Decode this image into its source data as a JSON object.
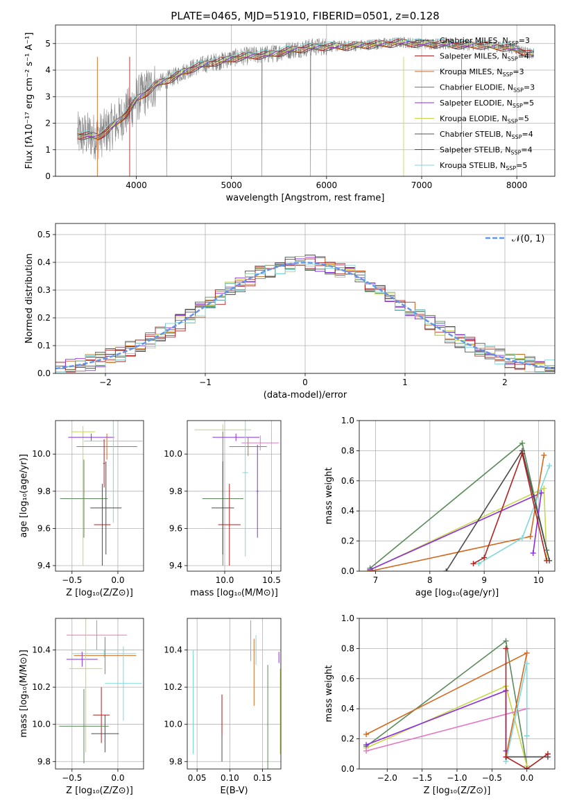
{
  "figure": {
    "title": "PLATE=0465, MJD=51910, FIBERID=0501, z=0.128"
  },
  "colors": {
    "Chabrier MILES": "#4a4a4a",
    "Salpeter MILES": "#b22222",
    "Kroupa MILES": "#d2691e",
    "Chabrier ELODIE": "#5a8a5a",
    "Salpeter ELODIE": "#8b2be2",
    "Kroupa ELODIE": "#c8d84a",
    "Chabrier STELIB": "#505050",
    "Salpeter STELIB": "#b22222",
    "Kroupa STELIB": "#7dd8d8",
    "pink": "#e377c2",
    "data": "#808080",
    "normal": "#6495ed"
  },
  "chart_data": [
    {
      "id": "spectrum",
      "type": "line",
      "xlabel": "wavelength [Angstrom, rest frame]",
      "ylabel": "Flux [fλ10⁻¹⁷ erg cm⁻² s⁻¹ A⁻¹]",
      "xlim": [
        3150,
        8400
      ],
      "ylim": [
        0,
        5.7
      ],
      "xticks": [
        4000,
        5000,
        6000,
        7000,
        8000
      ],
      "yticks": [
        0,
        1,
        2,
        3,
        4,
        5
      ],
      "grid": true,
      "legend_position": "right",
      "continuum": {
        "x": [
          3400,
          3500,
          3600,
          3700,
          3800,
          3900,
          4000,
          4100,
          4200,
          4300,
          4400,
          4500,
          4600,
          4700,
          4800,
          4900,
          5000,
          5200,
          5400,
          5600,
          5800,
          6000,
          6200,
          6400,
          6600,
          6800,
          7000,
          7200,
          7400,
          7600,
          7800,
          8000,
          8150
        ],
        "y": [
          1.55,
          1.55,
          1.5,
          1.75,
          2.05,
          2.4,
          2.9,
          3.15,
          3.45,
          3.6,
          3.75,
          3.95,
          4.1,
          4.2,
          4.3,
          4.35,
          4.45,
          4.55,
          4.6,
          4.75,
          4.85,
          4.9,
          4.9,
          4.95,
          5.0,
          5.05,
          5.0,
          5.0,
          4.95,
          4.95,
          4.9,
          4.8,
          4.6
        ]
      },
      "series": [
        {
          "name": "Chabrier MILES, N_SSP=3",
          "label": "Chabrier MILES, N",
          "sub": "SSP",
          "suffix": "=3",
          "color": "#4a4a4a",
          "style": "solid"
        },
        {
          "name": "Salpeter MILES, N_SSP=4",
          "label": "Salpeter MILES, N",
          "sub": "SSP",
          "suffix": "=4",
          "color": "#b22222",
          "style": "solid"
        },
        {
          "name": "Kroupa MILES, N_SSP=3",
          "label": "Kroupa MILES, N",
          "sub": "SSP",
          "suffix": "=3",
          "color": "#d2691e",
          "style": "solid"
        },
        {
          "name": "Chabrier ELODIE, N_SSP=3",
          "label": "Chabrier ELODIE, N",
          "sub": "SSP",
          "suffix": "=3",
          "color": "#5a8a5a",
          "style": "solid"
        },
        {
          "name": "Salpeter ELODIE, N_SSP=5",
          "label": "Salpeter ELODIE, N",
          "sub": "SSP",
          "suffix": "=5",
          "color": "#8b2be2",
          "style": "solid"
        },
        {
          "name": "Kroupa ELODIE, N_SSP=5",
          "label": "Kroupa ELODIE, N",
          "sub": "SSP",
          "suffix": "=5",
          "color": "#c8d84a",
          "style": "solid"
        },
        {
          "name": "Chabrier STELIB, N_SSP=4",
          "label": "Chabrier STELIB, N",
          "sub": "SSP",
          "suffix": "=4",
          "color": "#505050",
          "style": "solid"
        },
        {
          "name": "Salpeter STELIB, N_SSP=4",
          "label": "Salpeter STELIB, N",
          "sub": "SSP",
          "suffix": "=4",
          "color": "#b22222",
          "style": "solid"
        },
        {
          "name": "Kroupa STELIB, N_SSP=5",
          "label": "Kroupa STELIB, N",
          "sub": "SSP",
          "suffix": "=5",
          "color": "#7dd8d8",
          "style": "solid"
        }
      ]
    },
    {
      "id": "residuals",
      "type": "line",
      "xlabel": "(data-model)/error",
      "ylabel": "Normed distribution",
      "xlim": [
        -2.5,
        2.5
      ],
      "ylim": [
        0,
        0.54
      ],
      "xticks": [
        -2,
        -1,
        0,
        1,
        2
      ],
      "xtick_labels": [
        "−2",
        "−1",
        "0",
        "1",
        "2"
      ],
      "yticks": [
        0,
        0.1,
        0.2,
        0.3,
        0.4,
        0.5
      ],
      "ytick_labels": [
        "0.0",
        "0.1",
        "0.2",
        "0.3",
        "0.4",
        "0.5"
      ],
      "grid": true,
      "legend": "𝒩(0, 1)",
      "legend_position": "top-right",
      "gaussian": {
        "mean": 0,
        "sigma": 1
      }
    },
    {
      "id": "age_vs_Z",
      "type": "scatter",
      "xlabel": "Z [log₁₀(Z/Z⊙)]",
      "ylabel": "age  [log₁₀(age/yr)]",
      "xlim": [
        -0.68,
        0.28
      ],
      "ylim": [
        9.37,
        10.18
      ],
      "xticks": [
        -0.5,
        0.0
      ],
      "xtick_labels": [
        "−0.5",
        "0.0"
      ],
      "yticks": [
        9.4,
        9.6,
        9.8,
        10.0
      ],
      "ytick_labels": [
        "9.4",
        "9.6",
        "9.8",
        "10.0"
      ],
      "grid": true,
      "points": [
        {
          "x": -0.38,
          "y": 10.12,
          "xerr": 0.13,
          "yerr": 0.03,
          "color": "#c8d84a"
        },
        {
          "x": -0.38,
          "y": 9.76,
          "xerr": 0.25,
          "yerr": 0.36,
          "color": "#c8d84a"
        },
        {
          "x": -0.29,
          "y": 10.09,
          "xerr": 0.25,
          "yerr": 0.02,
          "color": "#8b2be2"
        },
        {
          "x": -0.12,
          "y": 10.04,
          "xerr": 0.33,
          "yerr": 0.07,
          "color": "#d2691e"
        },
        {
          "x": -0.05,
          "y": 10.07,
          "xerr": 0.32,
          "yerr": 0.44,
          "color": "#7dd8d8"
        },
        {
          "x": -0.37,
          "y": 9.76,
          "xerr": 0.26,
          "yerr": 0.21,
          "color": "#5a8a5a"
        },
        {
          "x": -0.13,
          "y": 9.71,
          "xerr": 0.17,
          "yerr": 0.25,
          "color": "#4a4a4a"
        },
        {
          "x": -0.17,
          "y": 9.62,
          "xerr": 0.09,
          "yerr": 0.22,
          "color": "#b22222"
        },
        {
          "x": -0.15,
          "y": 9.95,
          "xerr": 0.01,
          "yerr": 0.13,
          "color": "#b22222"
        }
      ]
    },
    {
      "id": "age_vs_mass",
      "type": "scatter",
      "xlabel": "mass [log₁₀(M/M⊙)]",
      "ylabel": "",
      "xlim": [
        9.6,
        10.6
      ],
      "ylim": [
        9.37,
        10.18
      ],
      "xticks": [
        10.0,
        10.5
      ],
      "xtick_labels": [
        "10.0",
        "10.5"
      ],
      "yticks": [
        9.4,
        9.6,
        9.8,
        10.0
      ],
      "ytick_labels": [
        "9.4",
        "9.6",
        "9.8",
        "10.0"
      ],
      "grid": true,
      "points": [
        {
          "x": 9.98,
          "y": 10.13,
          "xerr": 0.3,
          "yerr": 0.03,
          "color": "#c8d84a"
        },
        {
          "x": 10.12,
          "y": 10.09,
          "xerr": 0.25,
          "yerr": 0.02,
          "color": "#8b2be2"
        },
        {
          "x": 10.25,
          "y": 10.04,
          "xerr": 0.2,
          "yerr": 0.05,
          "color": "#d2691e"
        },
        {
          "x": 10.38,
          "y": 10.06,
          "xerr": 0.2,
          "yerr": 0.04,
          "color": "#e377c2"
        },
        {
          "x": 10.22,
          "y": 9.9,
          "xerr": 0.03,
          "yerr": 0.45,
          "color": "#7dd8d8"
        },
        {
          "x": 9.98,
          "y": 9.76,
          "xerr": 0.22,
          "yerr": 0.36,
          "color": "#5a8a5a"
        },
        {
          "x": 9.98,
          "y": 9.71,
          "xerr": 0.12,
          "yerr": 0.25,
          "color": "#4a4a4a"
        },
        {
          "x": 10.05,
          "y": 9.62,
          "xerr": 0.12,
          "yerr": 0.22,
          "color": "#b22222"
        },
        {
          "x": 10.35,
          "y": 9.8,
          "xerr": 0.01,
          "yerr": 0.25,
          "color": "#8b2be2"
        }
      ]
    },
    {
      "id": "weight_vs_age",
      "type": "line",
      "xlabel": "age  [log₁₀(age/yr)]",
      "ylabel": "mass weight",
      "xlim": [
        6.7,
        10.3
      ],
      "ylim": [
        0,
        1.0
      ],
      "xticks": [
        7,
        8,
        9,
        10
      ],
      "yticks": [
        0,
        0.2,
        0.4,
        0.6,
        0.8,
        1.0
      ],
      "ytick_labels": [
        "0.0",
        "0.2",
        "0.4",
        "0.6",
        "0.8",
        "1.0"
      ],
      "grid": true,
      "series": [
        {
          "color": "#5a8a5a",
          "x": [
            6.9,
            9.7,
            10.15
          ],
          "y": [
            0.02,
            0.85,
            0.14
          ]
        },
        {
          "color": "#c8d84a",
          "x": [
            6.85,
            10.1,
            10.15
          ],
          "y": [
            0.0,
            0.55,
            0.08
          ]
        },
        {
          "color": "#8b2be2",
          "x": [
            6.9,
            10.05,
            9.9
          ],
          "y": [
            0.01,
            0.52,
            0.12
          ]
        },
        {
          "color": "#d2691e",
          "x": [
            6.9,
            9.85,
            10.1
          ],
          "y": [
            0.0,
            0.23,
            0.77
          ]
        },
        {
          "color": "#7dd8d8",
          "x": [
            8.9,
            9.7,
            10.2
          ],
          "y": [
            0.05,
            0.22,
            0.7
          ]
        },
        {
          "color": "#4a4a4a",
          "x": [
            8.3,
            9.7,
            10.2
          ],
          "y": [
            0.0,
            0.8,
            0.07
          ]
        },
        {
          "color": "#b22222",
          "x": [
            8.8,
            9.0,
            9.7,
            10.15
          ],
          "y": [
            0.05,
            0.09,
            0.78,
            0.07
          ]
        }
      ]
    },
    {
      "id": "mass_vs_Z",
      "type": "scatter",
      "xlabel": "Z [log₁₀(Z/Z⊙)]",
      "ylabel": "mass [log₁₀(M/M⊙)]",
      "xlim": [
        -0.68,
        0.28
      ],
      "ylim": [
        9.76,
        10.57
      ],
      "xticks": [
        -0.5,
        0.0
      ],
      "xtick_labels": [
        "−0.5",
        "0.0"
      ],
      "yticks": [
        9.8,
        10.0,
        10.2,
        10.4
      ],
      "ytick_labels": [
        "9.8",
        "10.0",
        "10.2",
        "10.4"
      ],
      "grid": true,
      "points": [
        {
          "x": -0.23,
          "y": 10.48,
          "xerr": 0.33,
          "yerr": 0.08,
          "color": "#e377c2"
        },
        {
          "x": -0.15,
          "y": 10.38,
          "xerr": 0.35,
          "yerr": 0.02,
          "color": "#7dd8d8"
        },
        {
          "x": -0.14,
          "y": 10.37,
          "xerr": 0.34,
          "yerr": 0.1,
          "color": "#d2691e"
        },
        {
          "x": -0.39,
          "y": 10.35,
          "xerr": 0.17,
          "yerr": 0.04,
          "color": "#8b2be2"
        },
        {
          "x": -0.35,
          "y": 10.3,
          "xerr": 0.18,
          "yerr": 0.45,
          "color": "#c8d84a"
        },
        {
          "x": 0.06,
          "y": 10.22,
          "xerr": 0.2,
          "yerr": 0.2,
          "color": "#7dd8d8"
        },
        {
          "x": -0.18,
          "y": 10.05,
          "xerr": 0.09,
          "yerr": 0.15,
          "color": "#b22222"
        },
        {
          "x": -0.14,
          "y": 9.95,
          "xerr": 0.15,
          "yerr": 0.1,
          "color": "#4a4a4a"
        },
        {
          "x": -0.37,
          "y": 9.99,
          "xerr": 0.27,
          "yerr": 0.2,
          "color": "#5a8a5a"
        }
      ]
    },
    {
      "id": "mass_vs_EBV",
      "type": "scatter",
      "xlabel": "E(B-V)",
      "ylabel": "",
      "xlim": [
        0.035,
        0.178
      ],
      "ylim": [
        9.76,
        10.57
      ],
      "xticks": [
        0.05,
        0.1,
        0.15
      ],
      "xtick_labels": [
        "0.05",
        "0.10",
        "0.15"
      ],
      "yticks": [
        9.8,
        10.0,
        10.2,
        10.4
      ],
      "ytick_labels": [
        "9.8",
        "10.0",
        "10.2",
        "10.4"
      ],
      "grid": true,
      "points": [
        {
          "x": 0.044,
          "y": 10.12,
          "xerr": 0,
          "yerr": 0.28,
          "color": "#7dd8d8"
        },
        {
          "x": 0.088,
          "y": 9.98,
          "xerr": 0,
          "yerr": 0.18,
          "color": "#4a4a4a"
        },
        {
          "x": 0.088,
          "y": 10.05,
          "xerr": 0,
          "yerr": 0.11,
          "color": "#b22222"
        },
        {
          "x": 0.132,
          "y": 10.45,
          "xerr": 0,
          "yerr": 0.11,
          "color": "#e377c2"
        },
        {
          "x": 0.137,
          "y": 10.28,
          "xerr": 0,
          "yerr": 0.18,
          "color": "#d2691e"
        },
        {
          "x": 0.14,
          "y": 10.4,
          "xerr": 0,
          "yerr": 0.08,
          "color": "#7dd8d8"
        },
        {
          "x": 0.158,
          "y": 10.0,
          "xerr": 0,
          "yerr": 0.32,
          "color": "#5a8a5a"
        },
        {
          "x": 0.175,
          "y": 10.36,
          "xerr": 0,
          "yerr": 0.03,
          "color": "#8b2be2"
        },
        {
          "x": 0.177,
          "y": 10.07,
          "xerr": 0,
          "yerr": 0.23,
          "color": "#c8d84a"
        }
      ]
    },
    {
      "id": "weight_vs_Z",
      "type": "line",
      "xlabel": "Z [log₁₀(Z/Z⊙)]",
      "ylabel": "mass weight",
      "xlim": [
        -2.4,
        0.4
      ],
      "ylim": [
        0,
        1.0
      ],
      "xticks": [
        -2.0,
        -1.5,
        -1.0,
        -0.5,
        0.0
      ],
      "xtick_labels": [
        "−2.0",
        "−1.5",
        "−1.0",
        "−0.5",
        "0.0"
      ],
      "yticks": [
        0,
        0.2,
        0.4,
        0.6,
        0.8,
        1.0
      ],
      "ytick_labels": [
        "0.0",
        "0.2",
        "0.4",
        "0.6",
        "0.8",
        "1.0"
      ],
      "grid": true,
      "series": [
        {
          "color": "#5a8a5a",
          "x": [
            -2.3,
            -0.3,
            0.0
          ],
          "y": [
            0.15,
            0.85,
            0.02
          ]
        },
        {
          "color": "#d2691e",
          "x": [
            -2.3,
            0.0,
            -0.3
          ],
          "y": [
            0.23,
            0.77,
            0.08
          ]
        },
        {
          "color": "#c8d84a",
          "x": [
            -2.3,
            -0.3,
            0.0
          ],
          "y": [
            0.14,
            0.55,
            0.02
          ]
        },
        {
          "color": "#8b2be2",
          "x": [
            -2.3,
            -0.3,
            -0.3
          ],
          "y": [
            0.16,
            0.52,
            0.12
          ]
        },
        {
          "color": "#e377c2",
          "x": [
            -2.3,
            0.0
          ],
          "y": [
            0.12,
            0.4
          ]
        },
        {
          "color": "#7dd8d8",
          "x": [
            -0.3,
            0.0,
            0.0
          ],
          "y": [
            0.05,
            0.7,
            0.22
          ]
        },
        {
          "color": "#4a4a4a",
          "x": [
            -0.3,
            0.3
          ],
          "y": [
            0.08,
            0.08
          ]
        },
        {
          "color": "#b22222",
          "x": [
            -0.3,
            -0.3,
            -0.3,
            0.0,
            0.3
          ],
          "y": [
            0.8,
            0.08,
            0.08,
            0.0,
            0.1
          ]
        }
      ]
    }
  ]
}
